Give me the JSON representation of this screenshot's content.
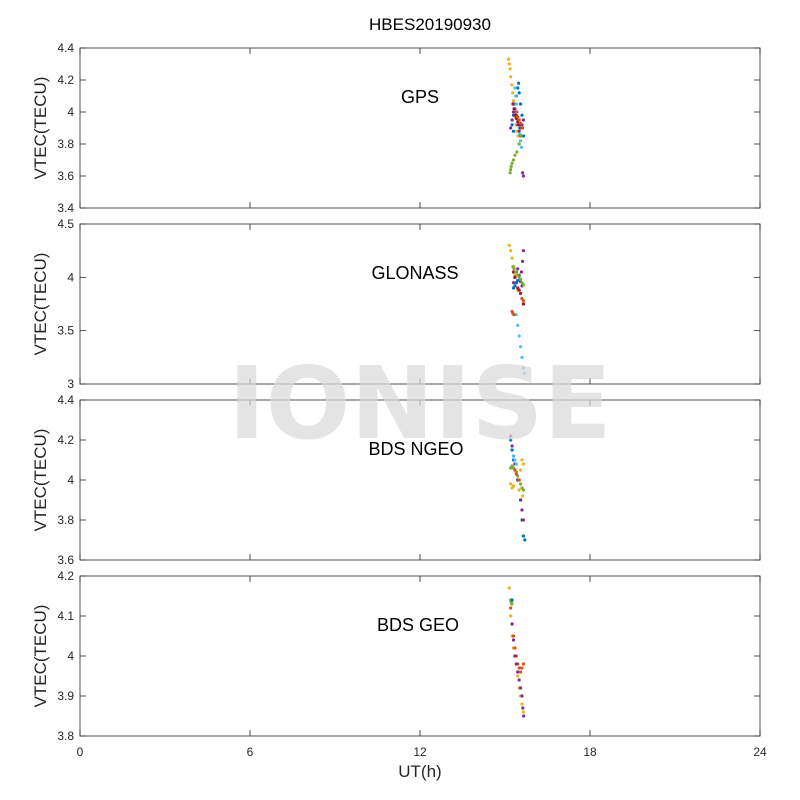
{
  "chart_data": {
    "type": "scatter",
    "title": "HBES20190930",
    "xlabel": "UT(h)",
    "xlim": [
      0,
      24
    ],
    "xticks": [
      "0",
      "6",
      "12",
      "18",
      "24"
    ],
    "watermark": "IONISE",
    "series_colors": [
      "#0072bd",
      "#d95319",
      "#edb120",
      "#7e2f8e",
      "#77ac30",
      "#4dbeee",
      "#a2142f"
    ],
    "panels": [
      {
        "label": "GPS",
        "ylabel": "VTEC(TECU)",
        "ylim": [
          3.4,
          4.4
        ],
        "yticks": [
          "3.4",
          "3.6",
          "3.8",
          "4",
          "4.2",
          "4.4"
        ],
        "series": [
          {
            "color": "#edb120",
            "points": [
              [
                15.12,
                4.33
              ],
              [
                15.15,
                4.3
              ],
              [
                15.18,
                4.27
              ],
              [
                15.2,
                4.22
              ],
              [
                15.24,
                4.17
              ],
              [
                15.27,
                4.12
              ],
              [
                15.3,
                4.07
              ],
              [
                15.33,
                4.02
              ],
              [
                15.36,
                3.97
              ],
              [
                15.39,
                3.92
              ],
              [
                15.42,
                3.88
              ],
              [
                15.46,
                3.85
              ]
            ]
          },
          {
            "color": "#0072bd",
            "points": [
              [
                15.25,
                3.92
              ],
              [
                15.3,
                3.98
              ],
              [
                15.35,
                4.05
              ],
              [
                15.4,
                4.1
              ],
              [
                15.45,
                4.15
              ],
              [
                15.5,
                4.12
              ],
              [
                15.55,
                4.05
              ],
              [
                15.6,
                3.98
              ],
              [
                15.62,
                3.9
              ],
              [
                15.65,
                3.85
              ],
              [
                15.3,
                3.88
              ],
              [
                15.48,
                4.18
              ]
            ]
          },
          {
            "color": "#4dbeee",
            "points": [
              [
                15.35,
                4.15
              ],
              [
                15.38,
                4.1
              ],
              [
                15.4,
                4.05
              ],
              [
                15.43,
                4.0
              ],
              [
                15.46,
                3.95
              ],
              [
                15.5,
                3.9
              ],
              [
                15.52,
                3.86
              ],
              [
                15.55,
                3.82
              ],
              [
                15.58,
                3.78
              ]
            ]
          },
          {
            "color": "#7e2f8e",
            "points": [
              [
                15.2,
                3.9
              ],
              [
                15.25,
                3.95
              ],
              [
                15.3,
                4.0
              ],
              [
                15.35,
                4.02
              ],
              [
                15.4,
                3.98
              ],
              [
                15.45,
                3.92
              ],
              [
                15.5,
                3.88
              ],
              [
                15.55,
                3.85
              ],
              [
                15.6,
                3.92
              ],
              [
                15.65,
                3.95
              ],
              [
                15.62,
                3.62
              ],
              [
                15.65,
                3.6
              ]
            ]
          },
          {
            "color": "#77ac30",
            "points": [
              [
                15.18,
                3.62
              ],
              [
                15.2,
                3.64
              ],
              [
                15.22,
                3.66
              ],
              [
                15.25,
                3.68
              ],
              [
                15.3,
                3.7
              ],
              [
                15.35,
                3.73
              ],
              [
                15.42,
                3.75
              ],
              [
                15.5,
                3.8
              ],
              [
                15.56,
                3.85
              ]
            ]
          },
          {
            "color": "#a2142f",
            "points": [
              [
                15.28,
                4.05
              ],
              [
                15.32,
                4.02
              ],
              [
                15.36,
                3.98
              ],
              [
                15.4,
                3.96
              ],
              [
                15.45,
                3.94
              ],
              [
                15.5,
                3.92
              ],
              [
                15.55,
                3.9
              ]
            ]
          },
          {
            "color": "#d95319",
            "points": [
              [
                15.4,
                4.0
              ],
              [
                15.45,
                3.97
              ],
              [
                15.5,
                3.95
              ],
              [
                15.55,
                3.93
              ],
              [
                15.6,
                3.9
              ]
            ]
          }
        ]
      },
      {
        "label": "GLONASS",
        "ylabel": "VTEC(TECU)",
        "ylim": [
          3,
          4.5
        ],
        "yticks": [
          "3",
          "3.5",
          "4",
          "4.5"
        ],
        "series": [
          {
            "color": "#4dbeee",
            "points": [
              [
                15.4,
                3.65
              ],
              [
                15.45,
                3.55
              ],
              [
                15.5,
                3.45
              ],
              [
                15.55,
                3.35
              ],
              [
                15.6,
                3.25
              ],
              [
                15.65,
                3.15
              ],
              [
                15.68,
                3.1
              ]
            ]
          },
          {
            "color": "#edb120",
            "points": [
              [
                15.15,
                4.3
              ],
              [
                15.2,
                4.25
              ],
              [
                15.25,
                4.18
              ],
              [
                15.3,
                4.1
              ],
              [
                15.35,
                4.02
              ],
              [
                15.4,
                3.95
              ],
              [
                15.45,
                3.88
              ]
            ]
          },
          {
            "color": "#7e2f8e",
            "points": [
              [
                15.3,
                3.95
              ],
              [
                15.35,
                4.0
              ],
              [
                15.4,
                4.05
              ],
              [
                15.45,
                4.08
              ],
              [
                15.5,
                4.02
              ],
              [
                15.55,
                3.96
              ],
              [
                15.6,
                3.92
              ],
              [
                15.65,
                4.25
              ],
              [
                15.62,
                4.15
              ],
              [
                15.58,
                4.05
              ]
            ]
          },
          {
            "color": "#a2142f",
            "points": [
              [
                15.3,
                4.05
              ],
              [
                15.35,
                4.0
              ],
              [
                15.4,
                3.95
              ],
              [
                15.45,
                3.9
              ],
              [
                15.5,
                3.88
              ],
              [
                15.55,
                3.85
              ],
              [
                15.6,
                3.8
              ],
              [
                15.65,
                3.75
              ]
            ]
          },
          {
            "color": "#d95319",
            "points": [
              [
                15.25,
                3.68
              ],
              [
                15.28,
                3.66
              ],
              [
                15.32,
                3.65
              ],
              [
                15.6,
                3.8
              ],
              [
                15.65,
                3.78
              ]
            ]
          },
          {
            "color": "#77ac30",
            "points": [
              [
                15.28,
                4.1
              ],
              [
                15.32,
                4.08
              ],
              [
                15.38,
                4.05
              ],
              [
                15.45,
                4.02
              ],
              [
                15.5,
                4.0
              ],
              [
                15.55,
                3.98
              ],
              [
                15.6,
                3.95
              ],
              [
                15.65,
                3.93
              ]
            ]
          },
          {
            "color": "#0072bd",
            "points": [
              [
                15.3,
                3.9
              ],
              [
                15.35,
                3.92
              ],
              [
                15.4,
                3.95
              ],
              [
                15.45,
                3.97
              ]
            ]
          }
        ]
      },
      {
        "label": "BDS NGEO",
        "ylabel": "VTEC(TECU)",
        "ylim": [
          3.6,
          4.4
        ],
        "yticks": [
          "3.6",
          "3.8",
          "4",
          "4.2",
          "4.4"
        ],
        "series": [
          {
            "color": "#0072bd",
            "points": [
              [
                15.2,
                4.2
              ],
              [
                15.25,
                4.15
              ],
              [
                15.3,
                4.1
              ],
              [
                15.35,
                4.05
              ],
              [
                15.45,
                4.0
              ],
              [
                15.55,
                3.9
              ],
              [
                15.6,
                3.8
              ],
              [
                15.65,
                3.72
              ],
              [
                15.7,
                3.7
              ]
            ]
          },
          {
            "color": "#7e2f8e",
            "points": [
              [
                15.2,
                4.22
              ],
              [
                15.25,
                4.17
              ],
              [
                15.3,
                4.12
              ],
              [
                15.35,
                4.08
              ],
              [
                15.45,
                4.0
              ],
              [
                15.55,
                3.9
              ],
              [
                15.6,
                3.85
              ],
              [
                15.65,
                3.8
              ]
            ]
          },
          {
            "color": "#edb120",
            "points": [
              [
                15.2,
                3.98
              ],
              [
                15.25,
                3.96
              ],
              [
                15.3,
                3.97
              ],
              [
                15.6,
                4.1
              ],
              [
                15.65,
                4.08
              ],
              [
                15.55,
                4.05
              ],
              [
                15.5,
                3.95
              ],
              [
                15.62,
                3.92
              ]
            ]
          },
          {
            "color": "#77ac30",
            "points": [
              [
                15.2,
                4.06
              ],
              [
                15.25,
                4.07
              ],
              [
                15.3,
                4.06
              ],
              [
                15.35,
                4.05
              ],
              [
                15.4,
                4.04
              ],
              [
                15.45,
                4.02
              ],
              [
                15.5,
                4.0
              ],
              [
                15.55,
                3.98
              ],
              [
                15.6,
                3.96
              ],
              [
                15.65,
                3.95
              ]
            ]
          },
          {
            "color": "#d95319",
            "points": [
              [
                15.35,
                4.05
              ],
              [
                15.4,
                4.03
              ],
              [
                15.5,
                4.0
              ]
            ]
          },
          {
            "color": "#4dbeee",
            "points": [
              [
                15.3,
                4.12
              ],
              [
                15.35,
                4.1
              ],
              [
                15.4,
                4.08
              ]
            ]
          }
        ]
      },
      {
        "label": "BDS GEO",
        "ylabel": "VTEC(TECU)",
        "ylim": [
          3.8,
          4.2
        ],
        "yticks": [
          "3.8",
          "3.9",
          "4",
          "4.1",
          "4.2"
        ],
        "series": [
          {
            "color": "#edb120",
            "points": [
              [
                15.15,
                4.17
              ],
              [
                15.2,
                4.1
              ],
              [
                15.25,
                4.05
              ],
              [
                15.3,
                4.02
              ],
              [
                15.35,
                4.0
              ],
              [
                15.4,
                3.98
              ],
              [
                15.45,
                3.95
              ],
              [
                15.5,
                3.92
              ],
              [
                15.55,
                3.9
              ],
              [
                15.6,
                3.88
              ],
              [
                15.65,
                3.86
              ]
            ]
          },
          {
            "color": "#d95319",
            "points": [
              [
                15.2,
                4.12
              ],
              [
                15.25,
                4.08
              ],
              [
                15.3,
                4.05
              ],
              [
                15.35,
                4.02
              ],
              [
                15.4,
                4.0
              ],
              [
                15.45,
                3.98
              ],
              [
                15.5,
                3.97
              ],
              [
                15.55,
                3.96
              ],
              [
                15.6,
                3.97
              ],
              [
                15.65,
                3.98
              ]
            ]
          },
          {
            "color": "#7e2f8e",
            "points": [
              [
                15.25,
                4.08
              ],
              [
                15.3,
                4.04
              ],
              [
                15.35,
                4.0
              ],
              [
                15.4,
                3.98
              ],
              [
                15.45,
                3.96
              ],
              [
                15.5,
                3.94
              ],
              [
                15.55,
                3.92
              ],
              [
                15.6,
                3.9
              ],
              [
                15.63,
                3.87
              ],
              [
                15.66,
                3.85
              ]
            ]
          },
          {
            "color": "#77ac30",
            "points": [
              [
                15.2,
                4.14
              ],
              [
                15.22,
                4.135
              ],
              [
                15.24,
                4.13
              ]
            ]
          },
          {
            "color": "#0072bd",
            "points": [
              [
                15.25,
                4.14
              ]
            ]
          }
        ]
      }
    ]
  }
}
